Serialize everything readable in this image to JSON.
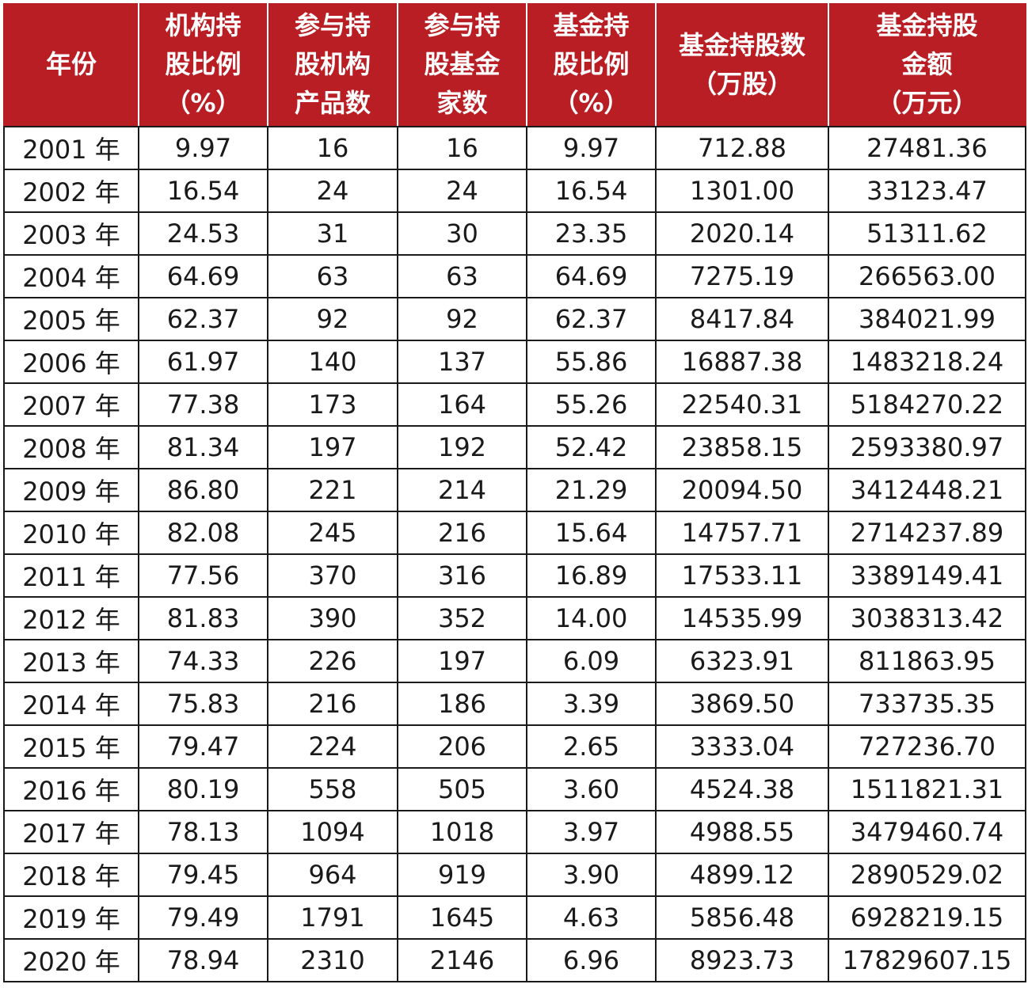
{
  "columns": [
    {
      "lines": [
        "年份"
      ]
    },
    {
      "lines": [
        "机构持",
        "股比例",
        "（%）"
      ]
    },
    {
      "lines": [
        "参与持",
        "股机构",
        "产品数"
      ]
    },
    {
      "lines": [
        "参与持",
        "股基金",
        "家数"
      ]
    },
    {
      "lines": [
        "基金持",
        "股比例",
        "（%）"
      ]
    },
    {
      "lines": [
        "基金持股数",
        "（万股）"
      ]
    },
    {
      "lines": [
        "基金持股",
        "金额",
        "（万元）"
      ]
    }
  ],
  "rows": [
    [
      "2001 年",
      "9.97",
      "16",
      "16",
      "9.97",
      "712.88",
      "27481.36"
    ],
    [
      "2002 年",
      "16.54",
      "24",
      "24",
      "16.54",
      "1301.00",
      "33123.47"
    ],
    [
      "2003 年",
      "24.53",
      "31",
      "30",
      "23.35",
      "2020.14",
      "51311.62"
    ],
    [
      "2004 年",
      "64.69",
      "63",
      "63",
      "64.69",
      "7275.19",
      "266563.00"
    ],
    [
      "2005 年",
      "62.37",
      "92",
      "92",
      "62.37",
      "8417.84",
      "384021.99"
    ],
    [
      "2006 年",
      "61.97",
      "140",
      "137",
      "55.86",
      "16887.38",
      "1483218.24"
    ],
    [
      "2007 年",
      "77.38",
      "173",
      "164",
      "55.26",
      "22540.31",
      "5184270.22"
    ],
    [
      "2008 年",
      "81.34",
      "197",
      "192",
      "52.42",
      "23858.15",
      "2593380.97"
    ],
    [
      "2009 年",
      "86.80",
      "221",
      "214",
      "21.29",
      "20094.50",
      "3412448.21"
    ],
    [
      "2010 年",
      "82.08",
      "245",
      "216",
      "15.64",
      "14757.71",
      "2714237.89"
    ],
    [
      "2011 年",
      "77.56",
      "370",
      "316",
      "16.89",
      "17533.11",
      "3389149.41"
    ],
    [
      "2012 年",
      "81.83",
      "390",
      "352",
      "14.00",
      "14535.99",
      "3038313.42"
    ],
    [
      "2013 年",
      "74.33",
      "226",
      "197",
      "6.09",
      "6323.91",
      "811863.95"
    ],
    [
      "2014 年",
      "75.83",
      "216",
      "186",
      "3.39",
      "3869.50",
      "733735.35"
    ],
    [
      "2015 年",
      "79.47",
      "224",
      "206",
      "2.65",
      "3333.04",
      "727236.70"
    ],
    [
      "2016 年",
      "80.19",
      "558",
      "505",
      "3.60",
      "4524.38",
      "1511821.31"
    ],
    [
      "2017 年",
      "78.13",
      "1094",
      "1018",
      "3.97",
      "4988.55",
      "3479460.74"
    ],
    [
      "2018 年",
      "79.45",
      "964",
      "919",
      "3.90",
      "4899.12",
      "2890529.02"
    ],
    [
      "2019 年",
      "79.49",
      "1791",
      "1645",
      "4.63",
      "5856.48",
      "6928219.15"
    ],
    [
      "2020 年",
      "78.94",
      "2310",
      "2146",
      "6.96",
      "8923.73",
      "17829607.15"
    ]
  ],
  "colors": {
    "header_background": "#b81e24",
    "header_text": "#ffffff",
    "grid": "#1a1a1a"
  }
}
